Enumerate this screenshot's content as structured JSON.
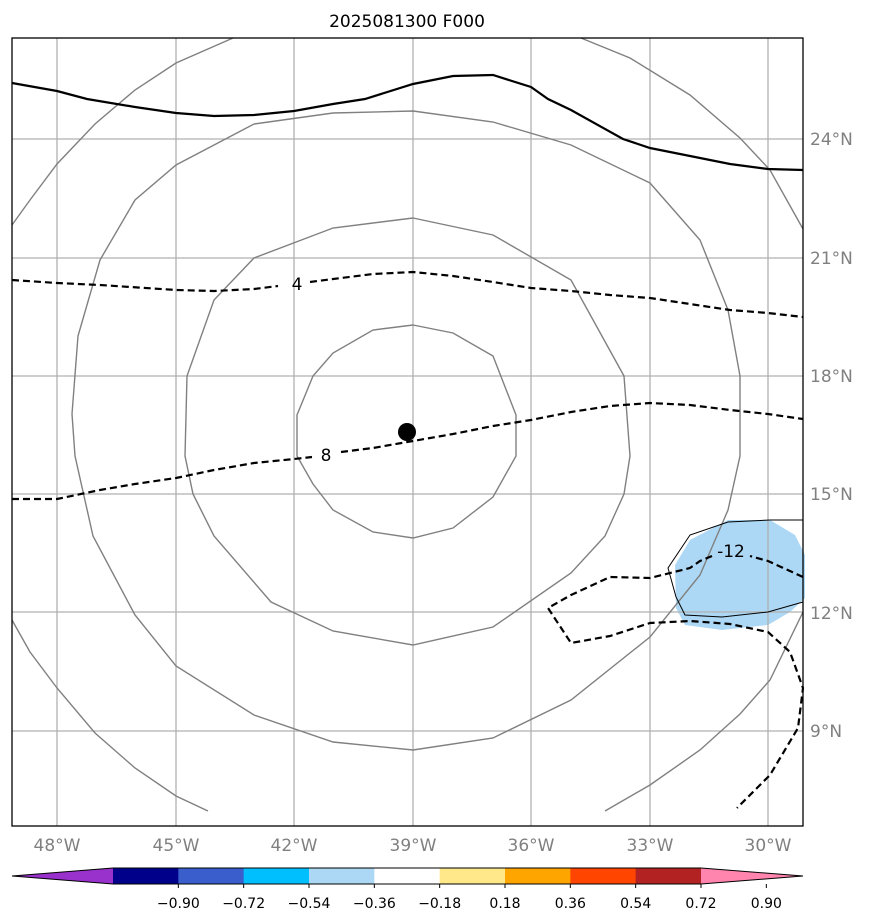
{
  "title": "2025081300 F000",
  "latitude_labels": [
    "24°N",
    "21°N",
    "18°N",
    "15°N",
    "12°N",
    "9°N"
  ],
  "longitude_labels": [
    "48°W",
    "45°W",
    "42°W",
    "39°W",
    "36°W",
    "33°W",
    "30°W"
  ],
  "contour_labels": [
    "4",
    "8",
    "-12"
  ],
  "colorbar": {
    "tick_labels": [
      "−0.90",
      "−0.72",
      "−0.54",
      "−0.36",
      "−0.18",
      "0.18",
      "0.36",
      "0.54",
      "0.72",
      "0.90"
    ],
    "colors": [
      "#9932cc",
      "#00008b",
      "#3a5fcd",
      "#00bfff",
      "#add8f5",
      "#ffffff",
      "#ffe88a",
      "#ffa500",
      "#ff4500",
      "#b22222",
      "#ff85ae"
    ]
  },
  "storm_marker": "black filled circle"
}
